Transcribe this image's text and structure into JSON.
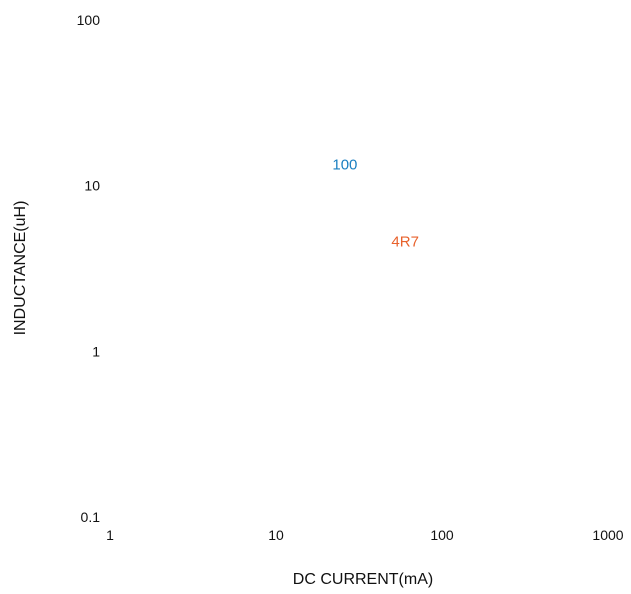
{
  "chart_data": {
    "type": "line",
    "title": "",
    "xlabel": "DC CURRENT(mA)",
    "ylabel": "INDUCTANCE(uH)",
    "x_scale": "log",
    "y_scale": "log",
    "xlim": [
      1,
      1000
    ],
    "ylim": [
      0.1,
      100
    ],
    "x_ticks": [
      "1",
      "10",
      "100",
      "1000"
    ],
    "y_ticks": [
      "100",
      "10",
      "1",
      "0.1"
    ],
    "grid": false,
    "series": [
      {
        "name": "100",
        "color": "#1a7fc1",
        "label_at": [
          26,
          12.5
        ],
        "x": [],
        "y": []
      },
      {
        "name": "4R7",
        "color": "#e8622c",
        "label_at": [
          60,
          4.3
        ],
        "x": [],
        "y": []
      }
    ]
  }
}
